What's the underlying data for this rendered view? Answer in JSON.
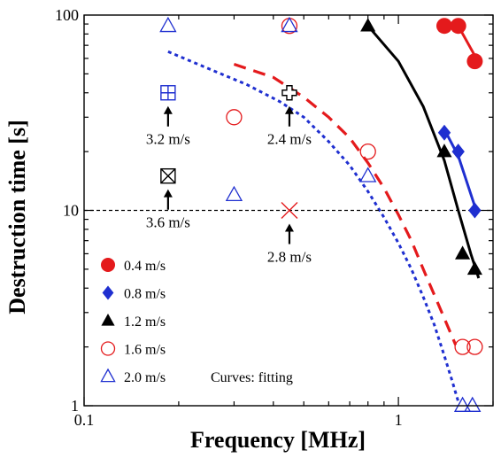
{
  "chart_data": {
    "type": "scatter",
    "xlabel": "Frequency [MHz]",
    "ylabel": "Destruction time [s]",
    "xscale": "log",
    "yscale": "log",
    "xlim": [
      0.1,
      2.0
    ],
    "ylim": [
      1,
      100
    ],
    "x_ticks": [
      {
        "value": 0.1,
        "label": "0.1"
      },
      {
        "value": 1,
        "label": "1"
      }
    ],
    "y_ticks": [
      {
        "value": 1,
        "label": "1"
      },
      {
        "value": 10,
        "label": "10"
      },
      {
        "value": 100,
        "label": "100"
      }
    ],
    "reference_line": {
      "y": 10,
      "style": "dashed"
    },
    "series": [
      {
        "name": "0.4 m/s",
        "marker": "filled-circle",
        "color": "#e41a1c",
        "points": [
          {
            "x": 1.4,
            "y": 88
          },
          {
            "x": 1.55,
            "y": 88
          },
          {
            "x": 1.75,
            "y": 58
          }
        ],
        "fit": [
          {
            "x": 1.55,
            "y": 88
          },
          {
            "x": 1.75,
            "y": 62
          }
        ]
      },
      {
        "name": "0.8 m/s",
        "marker": "filled-diamond",
        "color": "#1f2fd0",
        "points": [
          {
            "x": 1.4,
            "y": 25
          },
          {
            "x": 1.55,
            "y": 20
          },
          {
            "x": 1.75,
            "y": 10
          }
        ],
        "fit": [
          {
            "x": 1.4,
            "y": 26
          },
          {
            "x": 1.55,
            "y": 19
          },
          {
            "x": 1.75,
            "y": 10.5
          }
        ]
      },
      {
        "name": "1.2 m/s",
        "marker": "filled-triangle",
        "color": "#000000",
        "points": [
          {
            "x": 0.8,
            "y": 88
          },
          {
            "x": 1.4,
            "y": 20
          },
          {
            "x": 1.6,
            "y": 6
          },
          {
            "x": 1.75,
            "y": 5
          }
        ],
        "fit": [
          {
            "x": 0.8,
            "y": 88
          },
          {
            "x": 1.0,
            "y": 58
          },
          {
            "x": 1.2,
            "y": 34
          },
          {
            "x": 1.4,
            "y": 18
          },
          {
            "x": 1.55,
            "y": 10
          },
          {
            "x": 1.7,
            "y": 6
          },
          {
            "x": 1.8,
            "y": 4.5
          }
        ]
      },
      {
        "name": "1.6 m/s",
        "marker": "open-circle",
        "color": "#e41a1c",
        "points": [
          {
            "x": 0.3,
            "y": 30
          },
          {
            "x": 0.45,
            "y": 88
          },
          {
            "x": 0.8,
            "y": 20
          },
          {
            "x": 1.6,
            "y": 2
          },
          {
            "x": 1.75,
            "y": 2
          }
        ],
        "fit": [
          {
            "x": 0.3,
            "y": 56
          },
          {
            "x": 0.4,
            "y": 48
          },
          {
            "x": 0.5,
            "y": 38
          },
          {
            "x": 0.6,
            "y": 30
          },
          {
            "x": 0.7,
            "y": 23.5
          },
          {
            "x": 0.8,
            "y": 17.5
          },
          {
            "x": 0.9,
            "y": 13
          },
          {
            "x": 1.0,
            "y": 9.5
          },
          {
            "x": 1.1,
            "y": 7
          },
          {
            "x": 1.2,
            "y": 5
          },
          {
            "x": 1.3,
            "y": 3.7
          },
          {
            "x": 1.4,
            "y": 2.8
          },
          {
            "x": 1.52,
            "y": 2.05
          }
        ]
      },
      {
        "name": "2.0 m/s",
        "marker": "open-triangle",
        "color": "#1f2fd0",
        "points": [
          {
            "x": 0.185,
            "y": 88
          },
          {
            "x": 0.3,
            "y": 12
          },
          {
            "x": 0.45,
            "y": 88
          },
          {
            "x": 0.8,
            "y": 15
          },
          {
            "x": 1.6,
            "y": 1
          },
          {
            "x": 1.72,
            "y": 1
          }
        ],
        "fit": [
          {
            "x": 0.185,
            "y": 65
          },
          {
            "x": 0.25,
            "y": 53
          },
          {
            "x": 0.33,
            "y": 44
          },
          {
            "x": 0.42,
            "y": 36
          },
          {
            "x": 0.5,
            "y": 30
          },
          {
            "x": 0.6,
            "y": 22.5
          },
          {
            "x": 0.7,
            "y": 17
          },
          {
            "x": 0.8,
            "y": 12.5
          },
          {
            "x": 0.9,
            "y": 9.2
          },
          {
            "x": 1.0,
            "y": 6.8
          },
          {
            "x": 1.1,
            "y": 5
          },
          {
            "x": 1.2,
            "y": 3.6
          },
          {
            "x": 1.3,
            "y": 2.6
          },
          {
            "x": 1.4,
            "y": 1.8
          },
          {
            "x": 1.48,
            "y": 1.35
          },
          {
            "x": 1.55,
            "y": 1.05
          }
        ]
      }
    ],
    "special_points": [
      {
        "marker": "boxed-plus",
        "color": "#1f2fd0",
        "x": 0.185,
        "y": 40,
        "label": "3.2 m/s"
      },
      {
        "marker": "boxed-x",
        "color": "#000000",
        "x": 0.185,
        "y": 15,
        "label": "3.6 m/s"
      },
      {
        "marker": "cross-plus",
        "color": "#000000",
        "x": 0.45,
        "y": 40,
        "label": "2.4 m/s"
      },
      {
        "marker": "x",
        "color": "#e41a1c",
        "x": 0.45,
        "y": 10,
        "label": "2.8 m/s"
      }
    ],
    "legend_placement": "bottom-left",
    "legend_note": "Curves: fitting"
  }
}
